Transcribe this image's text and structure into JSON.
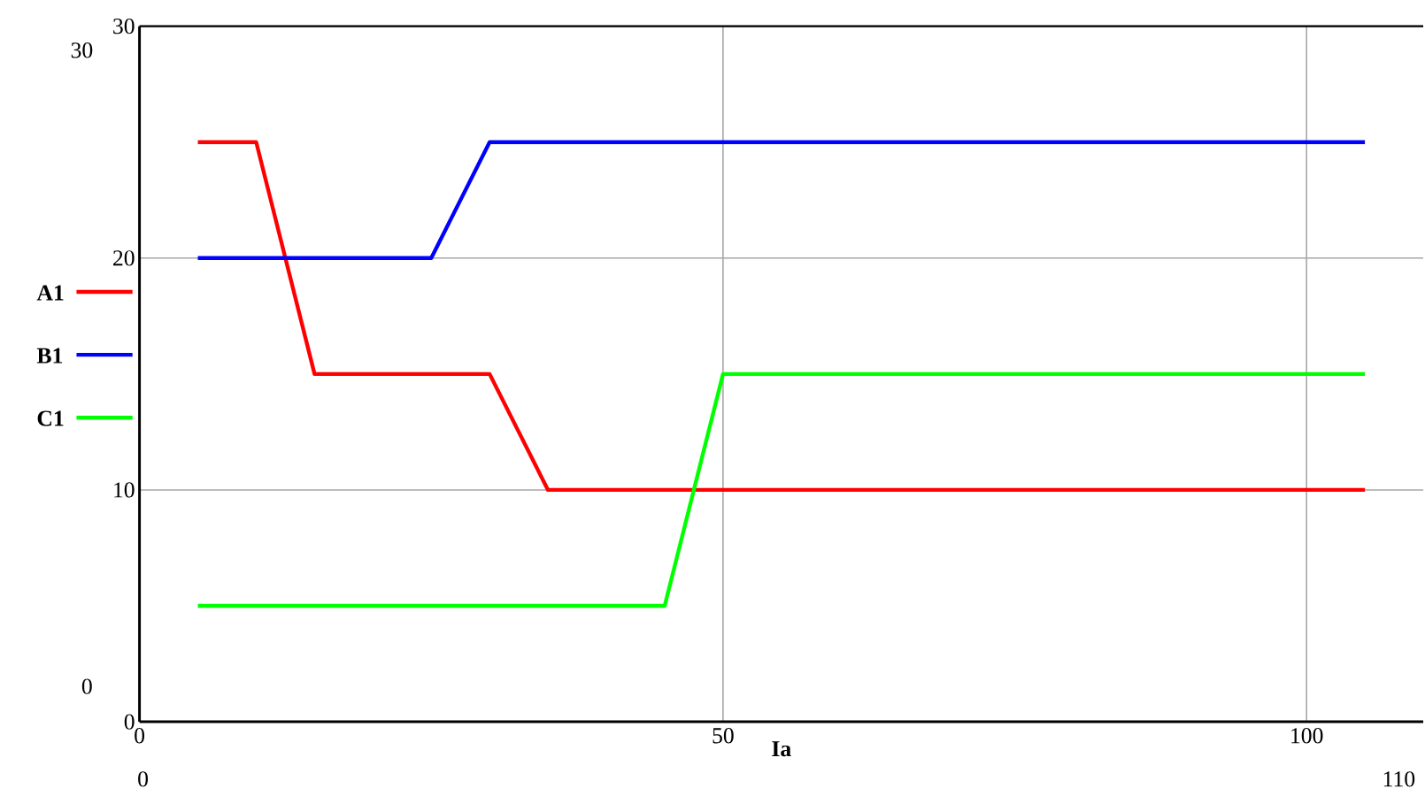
{
  "chart_data": {
    "type": "line",
    "xlabel": "Ia",
    "xlim": [
      0,
      110
    ],
    "ylim": [
      0,
      30
    ],
    "xticks": [
      0,
      50,
      100
    ],
    "yticks": [
      0,
      10,
      20,
      30
    ],
    "grid": true,
    "legend": "left",
    "line_style": "solid",
    "marker": "none",
    "annotations": [
      "30",
      "0",
      "0",
      "110"
    ],
    "series": [
      {
        "name": "A1",
        "color": "#ff0000",
        "x": [
          5,
          10,
          15,
          30,
          35,
          105
        ],
        "values": [
          25,
          25,
          15,
          15,
          10,
          10
        ]
      },
      {
        "name": "B1",
        "color": "#0000ff",
        "x": [
          5,
          25,
          30,
          105
        ],
        "values": [
          20,
          20,
          25,
          25
        ]
      },
      {
        "name": "C1",
        "color": "#00ff00",
        "x": [
          5,
          45,
          50,
          105
        ],
        "values": [
          5,
          5,
          15,
          15
        ]
      }
    ]
  }
}
